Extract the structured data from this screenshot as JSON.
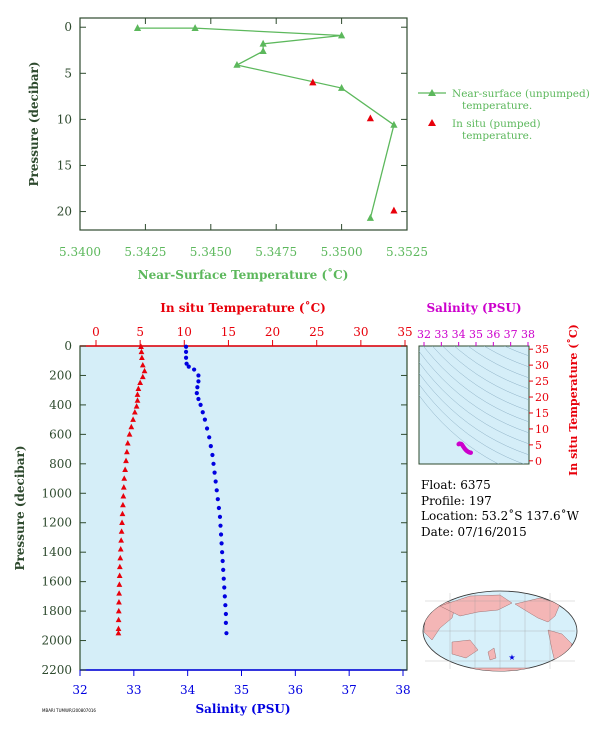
{
  "colors": {
    "green": "#5cb85c",
    "red": "#e8000b",
    "blue": "#0000e0",
    "magenta": "#cc00cc",
    "axis_text": "#2e4a2e",
    "panel_bg": "#d5eef8",
    "land": "#f4b6b6",
    "ocean": "#d7f0fa"
  },
  "chart_data": [
    {
      "type": "line",
      "xlabel": "Near-Surface Temperature (˚C)",
      "ylabel": "Pressure (decibar)",
      "xlim": [
        5.34,
        5.3525
      ],
      "ylim": [
        22,
        -1
      ],
      "xticks": [
        "5.3400",
        "5.3425",
        "5.3450",
        "5.3475",
        "5.3500",
        "5.3525"
      ],
      "yticks": [
        "0",
        "5",
        "10",
        "15",
        "20"
      ],
      "legend_position": "right",
      "series": [
        {
          "name": "Near-surface (unpumped) temperature.",
          "legend": [
            "Near-surface (unpumped)",
            "temperature."
          ],
          "marker": "triangle-line",
          "points": [
            [
              5.3422,
              0.1
            ],
            [
              5.3444,
              0.1
            ],
            [
              5.35,
              0.9
            ],
            [
              5.347,
              1.8
            ],
            [
              5.347,
              2.6
            ],
            [
              5.346,
              4.1
            ],
            [
              5.35,
              6.6
            ],
            [
              5.352,
              10.6
            ],
            [
              5.3511,
              20.7
            ]
          ]
        },
        {
          "name": "In situ (pumped) temperature.",
          "legend": [
            "In situ (pumped)",
            "temperature."
          ],
          "marker": "triangle",
          "points": [
            [
              5.3489,
              6.0
            ],
            [
              5.3511,
              9.9
            ],
            [
              5.352,
              19.9
            ]
          ]
        }
      ]
    },
    {
      "type": "scatter",
      "title_top": "In situ Temperature (˚C)",
      "xlabel": "Salinity (PSU)",
      "ylabel": "Pressure (decibar)",
      "temp_lim": [
        0,
        35
      ],
      "temp_ticks": [
        "0",
        "5",
        "10",
        "15",
        "20",
        "25",
        "30",
        "35"
      ],
      "sal_lim": [
        32,
        38
      ],
      "sal_ticks": [
        "32",
        "33",
        "34",
        "35",
        "36",
        "37",
        "38"
      ],
      "ylim": [
        2200,
        0
      ],
      "yticks": [
        "0",
        "200",
        "400",
        "600",
        "800",
        "1000",
        "1200",
        "1400",
        "1600",
        "1800",
        "2000",
        "2200"
      ],
      "temperature_profile": [
        [
          5.1,
          5
        ],
        [
          5.15,
          40
        ],
        [
          5.2,
          80
        ],
        [
          5.3,
          130
        ],
        [
          5.5,
          170
        ],
        [
          5.3,
          210
        ],
        [
          5.0,
          250
        ],
        [
          4.8,
          290
        ],
        [
          4.7,
          330
        ],
        [
          4.7,
          370
        ],
        [
          4.6,
          410
        ],
        [
          4.4,
          450
        ],
        [
          4.2,
          500
        ],
        [
          4.0,
          550
        ],
        [
          3.8,
          600
        ],
        [
          3.6,
          660
        ],
        [
          3.5,
          720
        ],
        [
          3.4,
          780
        ],
        [
          3.3,
          840
        ],
        [
          3.2,
          900
        ],
        [
          3.15,
          960
        ],
        [
          3.1,
          1020
        ],
        [
          3.05,
          1080
        ],
        [
          3.0,
          1140
        ],
        [
          2.95,
          1200
        ],
        [
          2.9,
          1260
        ],
        [
          2.85,
          1320
        ],
        [
          2.8,
          1380
        ],
        [
          2.75,
          1440
        ],
        [
          2.7,
          1500
        ],
        [
          2.68,
          1560
        ],
        [
          2.65,
          1620
        ],
        [
          2.62,
          1680
        ],
        [
          2.6,
          1740
        ],
        [
          2.58,
          1800
        ],
        [
          2.56,
          1860
        ],
        [
          2.55,
          1920
        ],
        [
          2.54,
          1950
        ]
      ],
      "salinity_profile": [
        [
          33.97,
          5
        ],
        [
          33.97,
          40
        ],
        [
          33.97,
          80
        ],
        [
          33.98,
          120
        ],
        [
          34.02,
          140
        ],
        [
          34.12,
          160
        ],
        [
          34.2,
          200
        ],
        [
          34.2,
          240
        ],
        [
          34.18,
          280
        ],
        [
          34.17,
          320
        ],
        [
          34.2,
          360
        ],
        [
          34.24,
          400
        ],
        [
          34.28,
          450
        ],
        [
          34.32,
          500
        ],
        [
          34.36,
          560
        ],
        [
          34.4,
          620
        ],
        [
          34.43,
          680
        ],
        [
          34.46,
          740
        ],
        [
          34.48,
          800
        ],
        [
          34.5,
          860
        ],
        [
          34.52,
          920
        ],
        [
          34.54,
          980
        ],
        [
          34.56,
          1040
        ],
        [
          34.58,
          1100
        ],
        [
          34.6,
          1160
        ],
        [
          34.61,
          1220
        ],
        [
          34.62,
          1280
        ],
        [
          34.63,
          1340
        ],
        [
          34.64,
          1400
        ],
        [
          34.65,
          1460
        ],
        [
          34.66,
          1520
        ],
        [
          34.67,
          1580
        ],
        [
          34.68,
          1640
        ],
        [
          34.69,
          1700
        ],
        [
          34.7,
          1760
        ],
        [
          34.71,
          1820
        ],
        [
          34.71,
          1880
        ],
        [
          34.72,
          1950
        ]
      ]
    },
    {
      "type": "scatter",
      "title_top": "Salinity (PSU)",
      "ylabel_right": "In situ Temperature (˚C)",
      "sal_lim": [
        32,
        38
      ],
      "sal_ticks": [
        "32",
        "33",
        "34",
        "35",
        "36",
        "37",
        "38"
      ],
      "temp_lim": [
        -1,
        36
      ],
      "temp_ticks": [
        "0",
        "5",
        "10",
        "15",
        "20",
        "25",
        "30",
        "35"
      ],
      "ts_points": [
        [
          34.0,
          5.2
        ],
        [
          34.05,
          5.4
        ],
        [
          34.15,
          5.3
        ],
        [
          34.2,
          5.0
        ],
        [
          34.25,
          4.6
        ],
        [
          34.3,
          4.2
        ],
        [
          34.35,
          3.8
        ],
        [
          34.4,
          3.5
        ],
        [
          34.45,
          3.2
        ],
        [
          34.5,
          3.0
        ],
        [
          34.55,
          2.8
        ],
        [
          34.6,
          2.7
        ],
        [
          34.65,
          2.6
        ],
        [
          34.7,
          2.55
        ]
      ]
    }
  ],
  "info": {
    "float": "Float:  6375",
    "profile": "Profile:  197",
    "location": "Location:  53.2˚S  137.6˚W",
    "date": "Date:  07/16/2015"
  },
  "footer": "MBARI TUMWR/200807016"
}
